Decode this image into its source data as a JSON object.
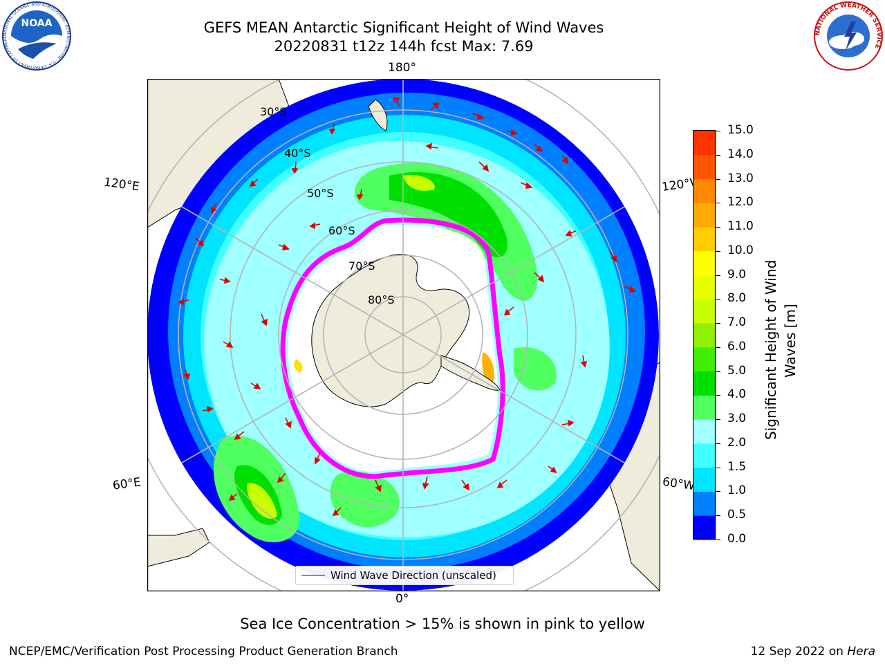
{
  "header": {
    "title_line1": "GEFS MEAN Antarctic Significant Height of Wind Waves",
    "title_line2": "20220831 t12z 144h fcst   Max: 7.69"
  },
  "logos": {
    "noaa_text": "NOAA",
    "noaa_ring_text": "NATIONAL OCEANIC AND ATMOSPHERIC ADMINISTRATION · U.S. DEPARTMENT OF COMMERCE",
    "nws_ring_text": "NATIONAL WEATHER SERVICE"
  },
  "map": {
    "projection": "South polar stereographic",
    "longitude_labels": {
      "top": "180°",
      "bottom": "0°",
      "upper_left": "120°E",
      "upper_right": "120°W",
      "lower_left": "60°E",
      "lower_right": "60°W"
    },
    "latitude_labels": [
      "30°S",
      "40°S",
      "50°S",
      "60°S",
      "70°S",
      "80°S"
    ],
    "legend_label": "Wind Wave Direction (unscaled)",
    "colors": {
      "land": "#efecdc",
      "arrows": "#e00000",
      "grid": "#b4b4b4",
      "sea_ice_edge": [
        "#ff00ff",
        "#ffb000",
        "#f7e300"
      ]
    }
  },
  "colorbar": {
    "label_line1": "Significant Height of Wind",
    "label_line2": "Waves [m]",
    "ticks": [
      "15.0",
      "14.0",
      "13.0",
      "12.0",
      "11.0",
      "10.0",
      "9.0",
      "8.0",
      "7.0",
      "6.0",
      "5.0",
      "4.0",
      "3.0",
      "2.0",
      "1.5",
      "1.0",
      "0.5",
      "0.0"
    ],
    "colors_bottom_to_top": [
      "#0000ff",
      "#0080ff",
      "#00e5ff",
      "#40ffff",
      "#a0ffff",
      "#50ff60",
      "#00e000",
      "#40ee00",
      "#90f000",
      "#c8ff00",
      "#e8ff00",
      "#ffff00",
      "#ffcc00",
      "#ffaa00",
      "#ff8800",
      "#ff5500",
      "#ff3300",
      "#ff0000"
    ]
  },
  "chart_data": {
    "type": "heatmap",
    "variable": "Significant Height of Wind Waves",
    "units": "m",
    "value_range": [
      0.0,
      15.0
    ],
    "max": 7.69,
    "color_levels": [
      0.0,
      0.5,
      1.0,
      1.5,
      2.0,
      3.0,
      4.0,
      5.0,
      6.0,
      7.0,
      8.0,
      9.0,
      10.0,
      11.0,
      12.0,
      13.0,
      14.0,
      15.0
    ]
  },
  "note": "Sea Ice Concentration > 15% is shown in pink to yellow",
  "footer": {
    "left": "NCEP/EMC/Verification Post Processing Product Generation Branch",
    "right_prefix": "12 Sep 2022 on ",
    "right_machine": "Hera"
  }
}
